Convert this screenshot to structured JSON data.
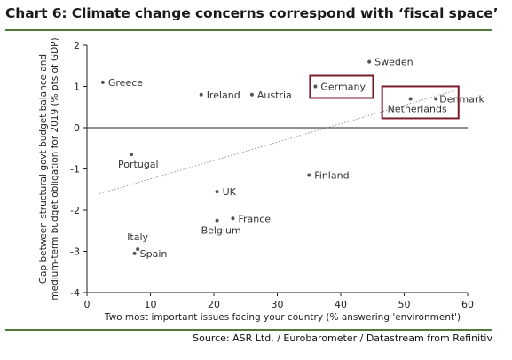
{
  "header": {
    "title": "Chart 6: Climate change concerns correspond with ‘fiscal space’"
  },
  "footer": {
    "source": "Source: ASR Ltd. / Eurobarometer / Datastream from Refinitiv"
  },
  "colors": {
    "accent_rule": "#4f7a3a",
    "highlight_box": "#7b1c2c",
    "point": "#555555",
    "trendline": "#999999"
  },
  "chart_data": {
    "type": "scatter",
    "xlabel": "Two most important issues facing your country (% answering 'environment')",
    "ylabel": "Gap between structural govt budget balance and medium-term budget obligation for 2019 (% pts of GDP)",
    "xlim": [
      0,
      60
    ],
    "ylim": [
      -4,
      2
    ],
    "xticks": [
      0,
      10,
      20,
      30,
      40,
      50,
      60
    ],
    "yticks": [
      2,
      1,
      0,
      -1,
      -2,
      -3,
      -4
    ],
    "grid": false,
    "trendline": {
      "style": "dotted",
      "start": [
        2,
        -1.6
      ],
      "end": [
        58,
        0.9
      ]
    },
    "points": [
      {
        "label": "Greece",
        "x": 2.5,
        "y": 1.1
      },
      {
        "label": "Ireland",
        "x": 18,
        "y": 0.8
      },
      {
        "label": "Austria",
        "x": 26,
        "y": 0.8
      },
      {
        "label": "Germany",
        "x": 36,
        "y": 1.0,
        "highlight": true
      },
      {
        "label": "Sweden",
        "x": 44.5,
        "y": 1.6
      },
      {
        "label": "Netherlands",
        "x": 51,
        "y": 0.7,
        "highlight": true
      },
      {
        "label": "Denmark",
        "x": 55,
        "y": 0.7,
        "highlight": true
      },
      {
        "label": "Portugal",
        "x": 7,
        "y": -0.65
      },
      {
        "label": "Finland",
        "x": 35,
        "y": -1.15
      },
      {
        "label": "UK",
        "x": 20.5,
        "y": -1.55
      },
      {
        "label": "France",
        "x": 23,
        "y": -2.2
      },
      {
        "label": "Belgium",
        "x": 20.5,
        "y": -2.25
      },
      {
        "label": "Italy",
        "x": 8,
        "y": -2.95
      },
      {
        "label": "Spain",
        "x": 7.5,
        "y": -3.05
      }
    ]
  }
}
